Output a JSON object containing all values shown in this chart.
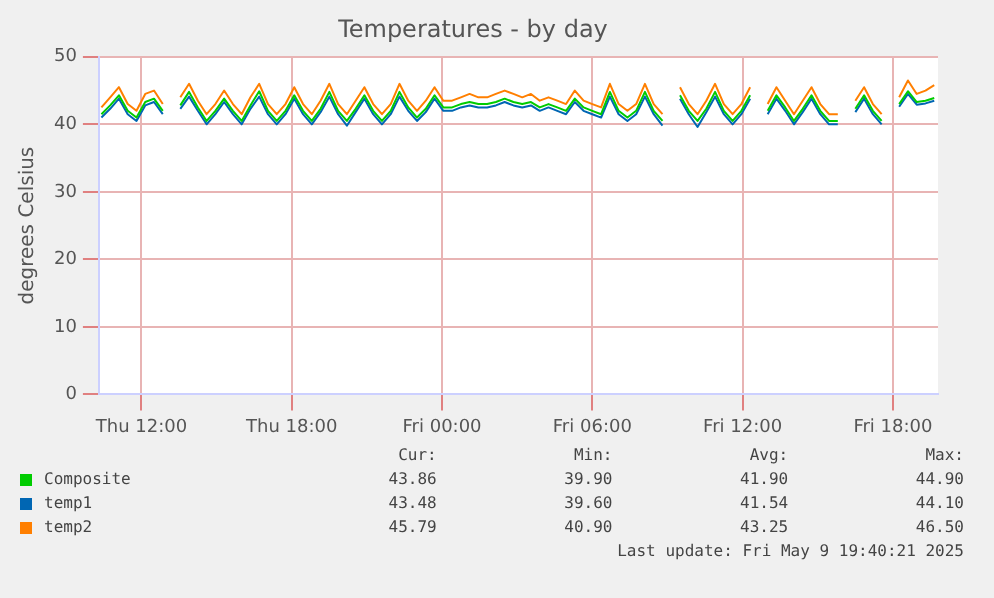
{
  "chart_data": {
    "type": "line",
    "title": "Temperatures - by day",
    "ylabel": "degrees Celsius",
    "x": [
      "2025-05-08T10:24",
      "2025-05-08T10:45",
      "2025-05-08T11:06",
      "2025-05-08T11:27",
      "2025-05-08T11:48",
      "2025-05-08T12:09",
      "2025-05-08T12:30",
      "2025-05-08T12:51",
      "2025-05-08T13:12",
      "2025-05-08T13:33",
      "2025-05-08T13:54",
      "2025-05-08T14:15",
      "2025-05-08T14:36",
      "2025-05-08T14:57",
      "2025-05-08T15:18",
      "2025-05-08T15:39",
      "2025-05-08T16:00",
      "2025-05-08T16:21",
      "2025-05-08T16:42",
      "2025-05-08T17:03",
      "2025-05-08T17:24",
      "2025-05-08T17:45",
      "2025-05-08T18:06",
      "2025-05-08T18:27",
      "2025-05-08T18:48",
      "2025-05-08T19:09",
      "2025-05-08T19:30",
      "2025-05-08T19:51",
      "2025-05-08T20:12",
      "2025-05-08T20:33",
      "2025-05-08T20:54",
      "2025-05-08T21:15",
      "2025-05-08T21:36",
      "2025-05-08T21:57",
      "2025-05-08T22:18",
      "2025-05-08T22:39",
      "2025-05-08T23:00",
      "2025-05-08T23:21",
      "2025-05-08T23:42",
      "2025-05-09T00:03",
      "2025-05-09T00:24",
      "2025-05-09T00:45",
      "2025-05-09T01:06",
      "2025-05-09T01:27",
      "2025-05-09T01:48",
      "2025-05-09T02:09",
      "2025-05-09T02:30",
      "2025-05-09T02:51",
      "2025-05-09T03:12",
      "2025-05-09T03:33",
      "2025-05-09T03:54",
      "2025-05-09T04:15",
      "2025-05-09T04:36",
      "2025-05-09T04:57",
      "2025-05-09T05:18",
      "2025-05-09T05:39",
      "2025-05-09T06:00",
      "2025-05-09T06:21",
      "2025-05-09T06:42",
      "2025-05-09T07:03",
      "2025-05-09T07:24",
      "2025-05-09T07:45",
      "2025-05-09T08:06",
      "2025-05-09T08:27",
      "2025-05-09T08:48",
      "2025-05-09T09:09",
      "2025-05-09T09:30",
      "2025-05-09T09:51",
      "2025-05-09T10:12",
      "2025-05-09T10:33",
      "2025-05-09T10:54",
      "2025-05-09T11:15",
      "2025-05-09T11:36",
      "2025-05-09T11:57",
      "2025-05-09T12:18",
      "2025-05-09T12:39",
      "2025-05-09T13:00",
      "2025-05-09T13:21",
      "2025-05-09T13:42",
      "2025-05-09T14:03",
      "2025-05-09T14:24",
      "2025-05-09T14:45",
      "2025-05-09T15:06",
      "2025-05-09T15:27",
      "2025-05-09T15:48",
      "2025-05-09T16:09",
      "2025-05-09T16:30",
      "2025-05-09T16:51",
      "2025-05-09T17:12",
      "2025-05-09T17:33",
      "2025-05-09T17:54",
      "2025-05-09T18:15",
      "2025-05-09T18:36",
      "2025-05-09T18:57",
      "2025-05-09T19:18",
      "2025-05-09T19:39"
    ],
    "series": [
      {
        "name": "Composite",
        "color": "#00cc00",
        "values": [
          41.5,
          42.8,
          44.3,
          42,
          41,
          43.3,
          43.8,
          42,
          null,
          42.8,
          44.8,
          42.5,
          40.5,
          42,
          43.8,
          42,
          40.5,
          42.8,
          44.9,
          42,
          40.5,
          42,
          44.3,
          42,
          40.5,
          42.3,
          44.8,
          42,
          40.5,
          42.3,
          44.3,
          42,
          40.5,
          42,
          44.8,
          42.5,
          41,
          42.3,
          44.3,
          42.5,
          42.5,
          43,
          43.3,
          43,
          43,
          43.3,
          43.8,
          43.3,
          43,
          43.3,
          42.5,
          43,
          42.5,
          42,
          43.8,
          42.5,
          42,
          41.5,
          44.8,
          42,
          41,
          42,
          44.8,
          42,
          40.5,
          null,
          44.3,
          42,
          40.5,
          42.3,
          44.8,
          42,
          40.5,
          42,
          44.3,
          null,
          42,
          44.3,
          42.5,
          40.5,
          42.3,
          44.3,
          42,
          40.5,
          40.5,
          null,
          42.3,
          44.3,
          42,
          40.5,
          null,
          43,
          44.9,
          43.3,
          43.5,
          43.9
        ]
      },
      {
        "name": "temp1",
        "color": "#0066b3",
        "values": [
          41,
          42.3,
          43.8,
          41.5,
          40.5,
          42.8,
          43.3,
          41.5,
          null,
          42.3,
          44.1,
          42,
          40,
          41.5,
          43.3,
          41.5,
          40,
          42.3,
          44.1,
          41.5,
          40,
          41.5,
          43.8,
          41.5,
          40,
          41.8,
          44.1,
          41.5,
          39.8,
          41.8,
          43.8,
          41.5,
          40,
          41.5,
          44.1,
          42,
          40.5,
          41.8,
          43.8,
          42,
          42,
          42.5,
          42.8,
          42.5,
          42.5,
          42.8,
          43.3,
          42.8,
          42.5,
          42.8,
          42,
          42.5,
          42,
          41.5,
          43.3,
          42,
          41.5,
          41,
          44.1,
          41.5,
          40.5,
          41.5,
          44.1,
          41.5,
          39.8,
          null,
          43.8,
          41.5,
          39.6,
          41.8,
          44.1,
          41.5,
          40,
          41.5,
          43.8,
          null,
          41.5,
          43.8,
          42,
          40,
          41.8,
          43.8,
          41.5,
          40,
          40,
          null,
          41.8,
          43.8,
          41.5,
          40,
          null,
          42.6,
          44.5,
          42.9,
          43.1,
          43.5
        ]
      },
      {
        "name": "temp2",
        "color": "#ff7f00",
        "values": [
          42.5,
          44,
          45.5,
          43,
          42,
          44.5,
          45,
          43,
          null,
          44,
          46,
          43.5,
          41.5,
          43,
          45,
          43,
          41.5,
          44,
          46,
          43,
          41.5,
          43,
          45.5,
          43,
          41.5,
          43.5,
          46,
          43,
          41.5,
          43.5,
          45.5,
          43,
          41.5,
          43,
          46,
          43.5,
          42,
          43.5,
          45.5,
          43.5,
          43.5,
          44,
          44.5,
          44,
          44,
          44.5,
          45,
          44.5,
          44,
          44.5,
          43.5,
          44,
          43.5,
          43,
          45,
          43.5,
          43,
          42.5,
          46,
          43,
          42,
          43,
          46,
          43,
          41.5,
          null,
          45.5,
          43,
          41.5,
          43.5,
          46,
          43,
          41.5,
          43,
          45.5,
          null,
          43,
          45.5,
          43.5,
          41.5,
          43.5,
          45.5,
          43,
          41.5,
          41.5,
          null,
          43.5,
          45.5,
          43,
          41.5,
          null,
          44,
          46.5,
          44.5,
          45,
          45.8
        ]
      }
    ],
    "xlim": [
      "2025-05-08T10:18",
      "2025-05-09T19:48"
    ],
    "xticks": [
      {
        "value": "2025-05-08T12:00",
        "label": "Thu 12:00"
      },
      {
        "value": "2025-05-08T18:00",
        "label": "Thu 18:00"
      },
      {
        "value": "2025-05-09T00:00",
        "label": "Fri 00:00"
      },
      {
        "value": "2025-05-09T06:00",
        "label": "Fri 06:00"
      },
      {
        "value": "2025-05-09T12:00",
        "label": "Fri 12:00"
      },
      {
        "value": "2025-05-09T18:00",
        "label": "Fri 18:00"
      }
    ],
    "ylim": [
      0,
      50
    ],
    "yticks": [
      0,
      10,
      20,
      30,
      40,
      50
    ],
    "grid": true,
    "legend": "bottom",
    "marker": "none",
    "line_style": "solid",
    "annotations": [
      "Cur:",
      "Min:",
      "Avg:",
      "Max:",
      "43.86",
      "39.90",
      "41.90",
      "44.90",
      "43.48",
      "39.60",
      "41.54",
      "44.10",
      "45.79",
      "40.90",
      "43.25",
      "46.50",
      "Last update: Fri May  9 19:40:21 2025"
    ]
  }
}
